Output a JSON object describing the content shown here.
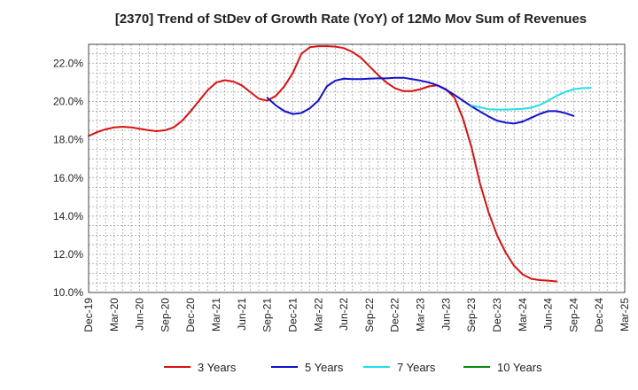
{
  "chart_data": {
    "type": "line",
    "title": "[2370]  Trend of StDev of Growth Rate (YoY) of 12Mo Mov Sum of Revenues",
    "xlabel": "",
    "ylabel": "",
    "ylim": [
      10.0,
      23.0
    ],
    "y_ticks": [
      10.0,
      12.0,
      14.0,
      16.0,
      18.0,
      20.0,
      22.0
    ],
    "y_tick_labels": [
      "10.0%",
      "12.0%",
      "14.0%",
      "16.0%",
      "18.0%",
      "20.0%",
      "22.0%"
    ],
    "x_tick_labels": [
      "Dec-19",
      "Mar-20",
      "Jun-20",
      "Sep-20",
      "Dec-20",
      "Mar-21",
      "Jun-21",
      "Sep-21",
      "Dec-21",
      "Mar-22",
      "Jun-22",
      "Sep-22",
      "Dec-22",
      "Mar-23",
      "Jun-23",
      "Sep-23",
      "Dec-23",
      "Mar-24",
      "Jun-24",
      "Sep-24",
      "Dec-24",
      "Mar-25"
    ],
    "grid": true,
    "legend_position": "bottom",
    "series": [
      {
        "name": "3 Years",
        "color": "#dd1111",
        "start_index": 0,
        "values": [
          18.2,
          18.4,
          18.55,
          18.65,
          18.68,
          18.65,
          18.58,
          18.5,
          18.45,
          18.5,
          18.65,
          19.0,
          19.5,
          20.05,
          20.6,
          21.0,
          21.12,
          21.05,
          20.85,
          20.5,
          20.15,
          20.05,
          20.3,
          20.8,
          21.5,
          22.5,
          22.85,
          22.9,
          22.9,
          22.88,
          22.8,
          22.6,
          22.3,
          21.85,
          21.4,
          21.0,
          20.7,
          20.55,
          20.55,
          20.65,
          20.8,
          20.85,
          20.65,
          20.2,
          19.1,
          17.6,
          15.7,
          14.2,
          13.0,
          12.1,
          11.4,
          10.95,
          10.72,
          10.65,
          10.62,
          10.58
        ]
      },
      {
        "name": "5 Years",
        "color": "#1111cc",
        "start_index": 21,
        "values": [
          20.2,
          19.8,
          19.5,
          19.35,
          19.4,
          19.65,
          20.05,
          20.8,
          21.1,
          21.2,
          21.18,
          21.18,
          21.2,
          21.22,
          21.22,
          21.25,
          21.25,
          21.18,
          21.1,
          21.0,
          20.85,
          20.62,
          20.35,
          20.05,
          19.75,
          19.48,
          19.22,
          19.0,
          18.9,
          18.85,
          18.95,
          19.15,
          19.35,
          19.5,
          19.5,
          19.4,
          19.25
        ]
      },
      {
        "name": "7 Years",
        "color": "#22e0e8",
        "start_index": 45,
        "values": [
          19.8,
          19.7,
          19.6,
          19.58,
          19.58,
          19.6,
          19.62,
          19.68,
          19.82,
          20.05,
          20.3,
          20.5,
          20.65,
          20.7,
          20.72
        ]
      },
      {
        "name": "10 Years",
        "color": "#118811",
        "start_index": 0,
        "values": []
      }
    ]
  }
}
